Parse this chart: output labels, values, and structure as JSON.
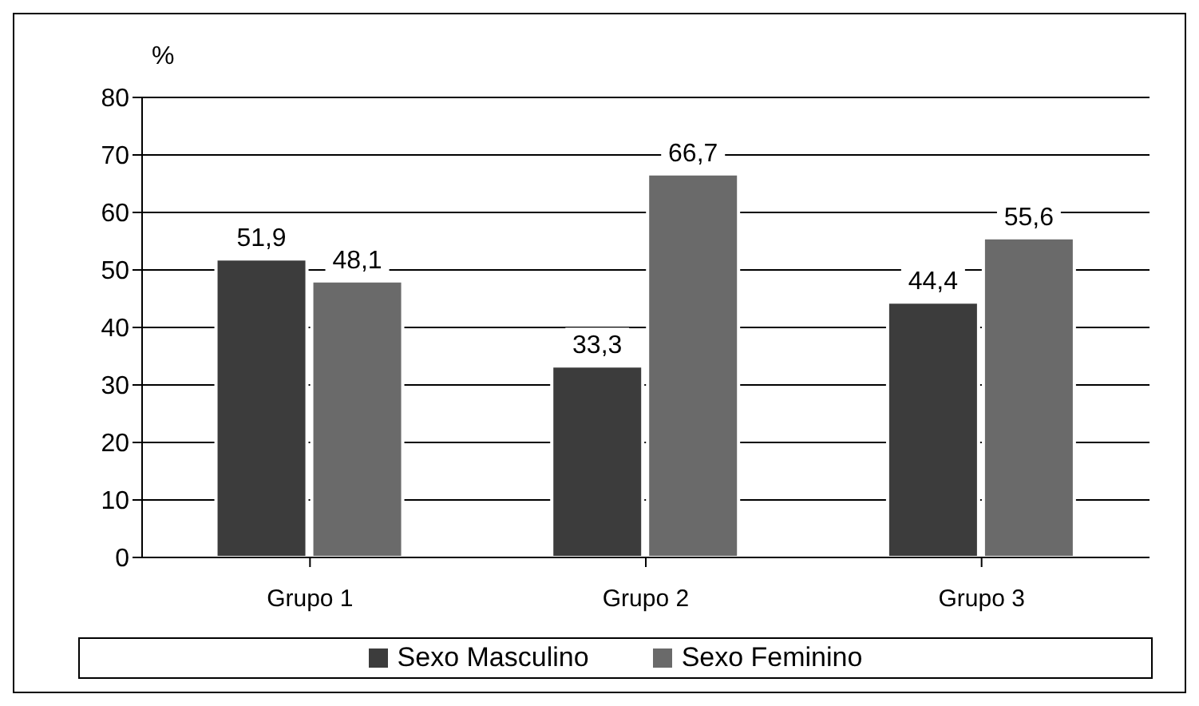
{
  "chart_data": {
    "type": "bar",
    "ylabel": "%",
    "categories": [
      "Grupo 1",
      "Grupo 2",
      "Grupo 3"
    ],
    "series": [
      {
        "name": "Sexo Masculino",
        "color": "#3c3c3c",
        "values": [
          51.9,
          33.3,
          44.4
        ],
        "value_labels": [
          "51,9",
          "33,3",
          "44,4"
        ]
      },
      {
        "name": "Sexo Feminino",
        "color": "#6a6a6a",
        "values": [
          48.1,
          66.7,
          55.6
        ],
        "value_labels": [
          "48,1",
          "66,7",
          "55,6"
        ]
      }
    ],
    "ylim": [
      0,
      80
    ],
    "yticks": [
      0,
      10,
      20,
      30,
      40,
      50,
      60,
      70,
      80
    ],
    "grid": "y",
    "legend": "bottom"
  }
}
